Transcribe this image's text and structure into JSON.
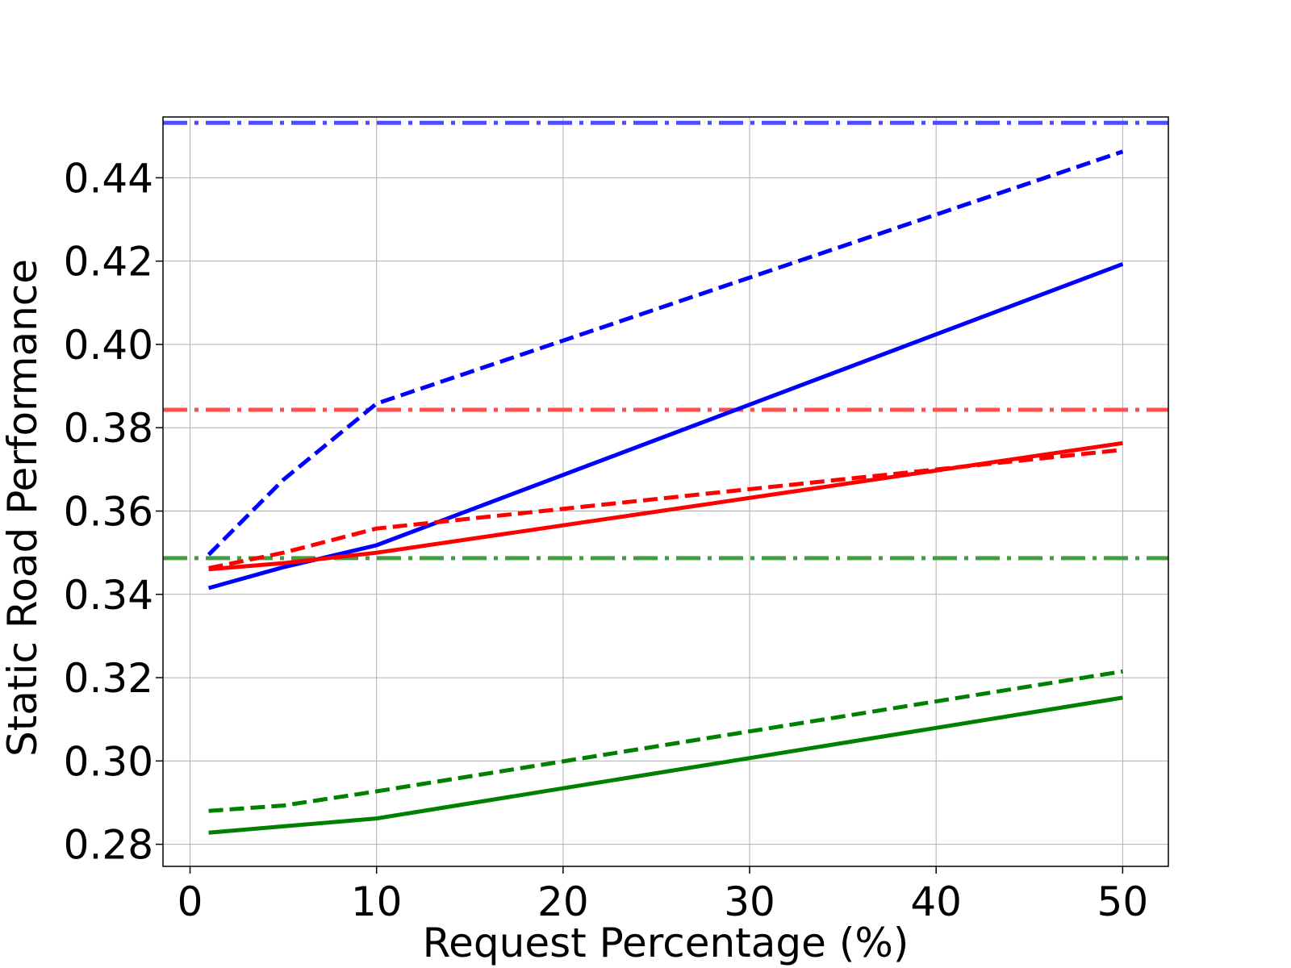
{
  "chart_data": {
    "type": "line",
    "title": "",
    "xlabel": "Request Percentage (%)",
    "ylabel": "Static Road Performance",
    "xlim": [
      -1.45,
      52.45
    ],
    "ylim": [
      0.2747,
      0.4546
    ],
    "xticks": [
      0,
      10,
      20,
      30,
      40,
      50
    ],
    "xtick_labels": [
      "0",
      "10",
      "20",
      "30",
      "40",
      "50"
    ],
    "yticks": [
      0.28,
      0.3,
      0.32,
      0.34,
      0.36,
      0.38,
      0.4,
      0.42,
      0.44
    ],
    "ytick_labels": [
      "0.28",
      "0.30",
      "0.32",
      "0.34",
      "0.36",
      "0.38",
      "0.40",
      "0.42",
      "0.44"
    ],
    "grid": true,
    "legend": false,
    "series": [
      {
        "color": "#0000ff",
        "style": "solid",
        "x": [
          1,
          5,
          10,
          50
        ],
        "y": [
          0.3415,
          0.3465,
          0.3518,
          0.4193
        ]
      },
      {
        "color": "#0000ff",
        "style": "dashed",
        "x": [
          1,
          5,
          10,
          50
        ],
        "y": [
          0.3495,
          0.3675,
          0.3858,
          0.4463
        ]
      },
      {
        "color": "#ff0000",
        "style": "solid",
        "x": [
          1,
          5,
          10,
          50
        ],
        "y": [
          0.346,
          0.3475,
          0.35,
          0.3763
        ]
      },
      {
        "color": "#ff0000",
        "style": "dashed",
        "x": [
          1,
          5,
          10,
          50
        ],
        "y": [
          0.3463,
          0.35,
          0.3558,
          0.3747
        ]
      },
      {
        "color": "#008000",
        "style": "solid",
        "x": [
          1,
          5,
          10,
          50
        ],
        "y": [
          0.2828,
          0.2843,
          0.2862,
          0.3152
        ]
      },
      {
        "color": "#008000",
        "style": "dashed",
        "x": [
          1,
          5,
          10,
          50
        ],
        "y": [
          0.288,
          0.2893,
          0.2927,
          0.3215
        ]
      }
    ],
    "hlines": [
      {
        "color": "#4d4dff",
        "style": "dashdot",
        "y": 0.4532
      },
      {
        "color": "#ff4d4d",
        "style": "dashdot",
        "y": 0.3843
      },
      {
        "color": "#3f9f3f",
        "style": "dashdot",
        "y": 0.3487
      }
    ]
  }
}
